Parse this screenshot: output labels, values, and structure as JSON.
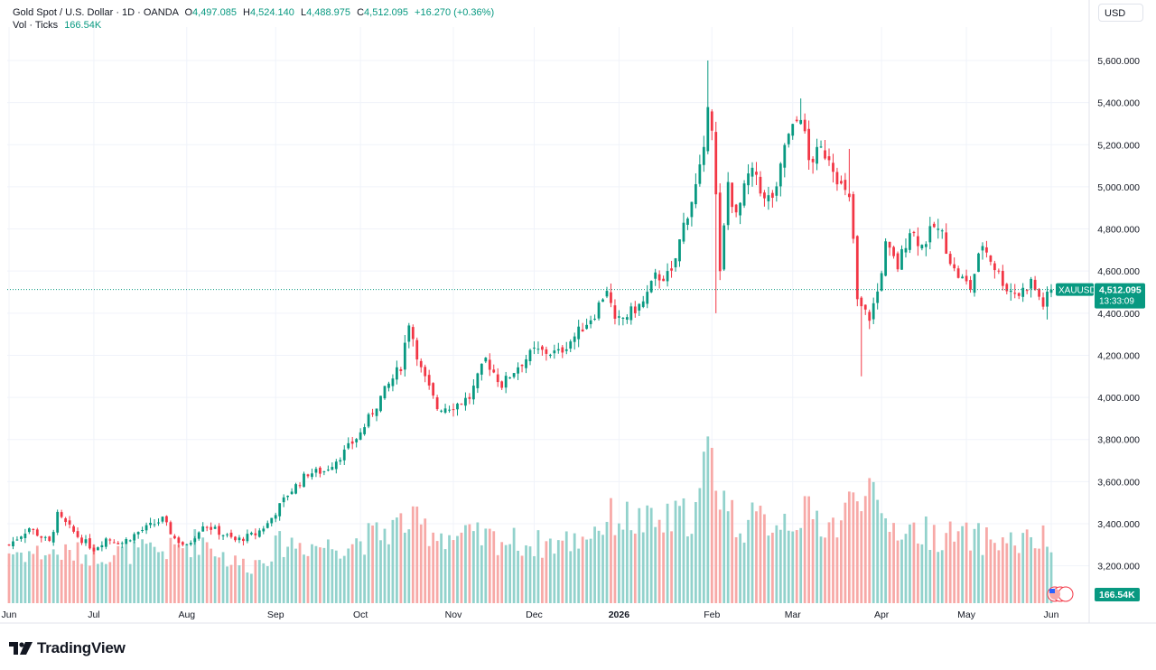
{
  "header": {
    "symbol": "Gold Spot / U.S. Dollar · 1D · OANDA",
    "open_label": "O",
    "open": "4,497.085",
    "high_label": "H",
    "high": "4,524.140",
    "low_label": "L",
    "low": "4,488.975",
    "close_label": "C",
    "close": "4,512.095",
    "change": "+16.270 (+0.36%)",
    "volume_label": "Vol · Ticks",
    "volume": "166.54K"
  },
  "currency_button": "USD",
  "price_tag": {
    "symbol": "XAUUSD",
    "price": "4,512.095",
    "countdown": "13:33:09"
  },
  "volume_tag": "166.54K",
  "brand": "TradingView",
  "colors": {
    "up": "#089981",
    "down": "#f23645",
    "up_vol": "#92d2cc",
    "down_vol": "#f7a9a7",
    "grid": "#f0f3fa",
    "text": "#131722"
  },
  "chart_data": {
    "type": "candlestick",
    "title": "Gold Spot / U.S. Dollar · 1D · OANDA",
    "ylim": [
      3100,
      5700
    ],
    "y_ticks": [
      3200,
      3400,
      3600,
      3800,
      4000,
      4200,
      4400,
      4600,
      4800,
      5000,
      5200,
      5400,
      5600
    ],
    "y_tick_labels": [
      "3,200.000",
      "3,400.000",
      "3,600.000",
      "3,800.000",
      "4,000.000",
      "4,200.000",
      "4,400.000",
      "4,600.000",
      "4,800.000",
      "5,000.000",
      "5,200.000",
      "5,400.000",
      "5,600.000"
    ],
    "x_ticks": [
      {
        "label": "Jun",
        "index": 0,
        "bold": false
      },
      {
        "label": "Jul",
        "index": 21,
        "bold": false
      },
      {
        "label": "Aug",
        "index": 44,
        "bold": false
      },
      {
        "label": "Sep",
        "index": 66,
        "bold": false
      },
      {
        "label": "Oct",
        "index": 87,
        "bold": false
      },
      {
        "label": "Nov",
        "index": 110,
        "bold": false
      },
      {
        "label": "Dec",
        "index": 130,
        "bold": false
      },
      {
        "label": "2026",
        "index": 151,
        "bold": true
      },
      {
        "label": "Feb",
        "index": 174,
        "bold": false
      },
      {
        "label": "Mar",
        "index": 194,
        "bold": false
      },
      {
        "label": "Apr",
        "index": 216,
        "bold": false
      },
      {
        "label": "May",
        "index": 237,
        "bold": false
      },
      {
        "label": "Jun",
        "index": 258,
        "bold": false
      }
    ],
    "anchors": [
      [
        0,
        3300
      ],
      [
        5,
        3380
      ],
      [
        10,
        3310
      ],
      [
        12,
        3440
      ],
      [
        17,
        3340
      ],
      [
        21,
        3280
      ],
      [
        24,
        3330
      ],
      [
        28,
        3310
      ],
      [
        32,
        3360
      ],
      [
        38,
        3420
      ],
      [
        41,
        3330
      ],
      [
        44,
        3290
      ],
      [
        48,
        3400
      ],
      [
        52,
        3360
      ],
      [
        56,
        3320
      ],
      [
        61,
        3350
      ],
      [
        64,
        3400
      ],
      [
        69,
        3540
      ],
      [
        74,
        3640
      ],
      [
        78,
        3650
      ],
      [
        83,
        3740
      ],
      [
        87,
        3830
      ],
      [
        92,
        4000
      ],
      [
        97,
        4150
      ],
      [
        99,
        4360
      ],
      [
        102,
        4130
      ],
      [
        106,
        3950
      ],
      [
        110,
        3960
      ],
      [
        114,
        4000
      ],
      [
        118,
        4180
      ],
      [
        122,
        4060
      ],
      [
        126,
        4150
      ],
      [
        130,
        4220
      ],
      [
        136,
        4210
      ],
      [
        140,
        4290
      ],
      [
        145,
        4400
      ],
      [
        148,
        4520
      ],
      [
        150,
        4350
      ],
      [
        153,
        4390
      ],
      [
        157,
        4450
      ],
      [
        160,
        4570
      ],
      [
        164,
        4580
      ],
      [
        167,
        4820
      ],
      [
        170,
        5000
      ],
      [
        172,
        5150
      ],
      [
        173,
        5420
      ],
      [
        174,
        5300
      ],
      [
        175,
        4950
      ],
      [
        176,
        4580
      ],
      [
        178,
        5020
      ],
      [
        180,
        4850
      ],
      [
        183,
        5050
      ],
      [
        185,
        5060
      ],
      [
        187,
        4930
      ],
      [
        190,
        4970
      ],
      [
        192,
        5200
      ],
      [
        194,
        5270
      ],
      [
        196,
        5350
      ],
      [
        198,
        5120
      ],
      [
        201,
        5170
      ],
      [
        203,
        5150
      ],
      [
        206,
        5000
      ],
      [
        208,
        4930
      ],
      [
        209,
        4750
      ],
      [
        210,
        4450
      ],
      [
        212,
        4400
      ],
      [
        213,
        4380
      ],
      [
        215,
        4500
      ],
      [
        217,
        4720
      ],
      [
        220,
        4620
      ],
      [
        223,
        4800
      ],
      [
        226,
        4720
      ],
      [
        229,
        4810
      ],
      [
        231,
        4770
      ],
      [
        234,
        4600
      ],
      [
        238,
        4520
      ],
      [
        241,
        4730
      ],
      [
        244,
        4620
      ],
      [
        247,
        4520
      ],
      [
        250,
        4490
      ],
      [
        253,
        4550
      ],
      [
        256,
        4440
      ],
      [
        258,
        4512
      ]
    ],
    "volume_anchors": [
      [
        0,
        135
      ],
      [
        20,
        130
      ],
      [
        40,
        140
      ],
      [
        48,
        170
      ],
      [
        55,
        110
      ],
      [
        60,
        100
      ],
      [
        68,
        160
      ],
      [
        80,
        150
      ],
      [
        90,
        175
      ],
      [
        98,
        215
      ],
      [
        110,
        175
      ],
      [
        120,
        170
      ],
      [
        130,
        155
      ],
      [
        140,
        165
      ],
      [
        150,
        230
      ],
      [
        160,
        205
      ],
      [
        170,
        240
      ],
      [
        173,
        390
      ],
      [
        176,
        310
      ],
      [
        180,
        210
      ],
      [
        190,
        220
      ],
      [
        196,
        235
      ],
      [
        205,
        205
      ],
      [
        210,
        290
      ],
      [
        212,
        350
      ],
      [
        215,
        220
      ],
      [
        220,
        200
      ],
      [
        230,
        180
      ],
      [
        240,
        170
      ],
      [
        250,
        160
      ],
      [
        258,
        166
      ]
    ],
    "series": [
      {
        "name": "XAUUSD",
        "last": 4512.095
      },
      {
        "name": "Vol · Ticks",
        "last": "166.54K"
      }
    ]
  }
}
